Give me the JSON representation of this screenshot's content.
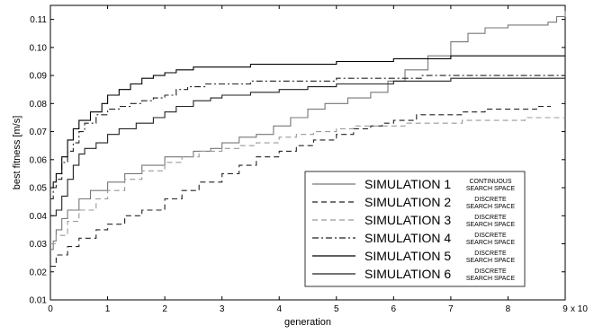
{
  "chart_data": {
    "type": "line",
    "xlabel": "generation",
    "ylabel": "best fitness [m/s]",
    "x_multiplier_label": "x 10",
    "xlim": [
      0,
      9
    ],
    "ylim": [
      0.01,
      0.115
    ],
    "xticks": [
      "0",
      "1",
      "2",
      "3",
      "4",
      "5",
      "6",
      "7",
      "8",
      "9"
    ],
    "yticks": [
      "0.01",
      "0.02",
      "0.03",
      "0.04",
      "0.05",
      "0.06",
      "0.07",
      "0.08",
      "0.09",
      "0.10",
      "0.11"
    ],
    "grid": false,
    "legend_position": "lower-right",
    "series": [
      {
        "name": "SIMULATION 1",
        "subtitle_top": "CONTINUOUS",
        "subtitle_bottom": "SEARCH SPACE",
        "style": "solid",
        "color": "#777777",
        "points": [
          [
            0,
            0.028
          ],
          [
            0.05,
            0.031
          ],
          [
            0.1,
            0.035
          ],
          [
            0.2,
            0.039
          ],
          [
            0.3,
            0.042
          ],
          [
            0.5,
            0.046
          ],
          [
            0.7,
            0.049
          ],
          [
            1.0,
            0.052
          ],
          [
            1.3,
            0.055
          ],
          [
            1.6,
            0.058
          ],
          [
            2.0,
            0.061
          ],
          [
            2.5,
            0.063
          ],
          [
            2.8,
            0.064
          ],
          [
            3.0,
            0.066
          ],
          [
            3.3,
            0.068
          ],
          [
            3.6,
            0.069
          ],
          [
            3.9,
            0.072
          ],
          [
            4.2,
            0.075
          ],
          [
            4.5,
            0.078
          ],
          [
            4.8,
            0.08
          ],
          [
            5.2,
            0.082
          ],
          [
            5.6,
            0.084
          ],
          [
            5.9,
            0.088
          ],
          [
            6.2,
            0.092
          ],
          [
            6.6,
            0.097
          ],
          [
            7.0,
            0.102
          ],
          [
            7.3,
            0.105
          ],
          [
            7.6,
            0.107
          ],
          [
            8.0,
            0.108
          ],
          [
            8.4,
            0.108
          ],
          [
            8.7,
            0.109
          ],
          [
            8.85,
            0.111
          ],
          [
            9.0,
            0.113
          ]
        ]
      },
      {
        "name": "SIMULATION 2",
        "subtitle_top": "DISCRETE",
        "subtitle_bottom": "SEARCH SPACE",
        "style": "dashed",
        "color": "#222222",
        "points": [
          [
            0,
            0.022
          ],
          [
            0.1,
            0.026
          ],
          [
            0.3,
            0.029
          ],
          [
            0.5,
            0.032
          ],
          [
            0.8,
            0.035
          ],
          [
            1.0,
            0.037
          ],
          [
            1.3,
            0.04
          ],
          [
            1.6,
            0.042
          ],
          [
            2.0,
            0.046
          ],
          [
            2.3,
            0.049
          ],
          [
            2.6,
            0.052
          ],
          [
            3.0,
            0.055
          ],
          [
            3.3,
            0.058
          ],
          [
            3.6,
            0.061
          ],
          [
            4.0,
            0.063
          ],
          [
            4.3,
            0.065
          ],
          [
            4.6,
            0.067
          ],
          [
            5.0,
            0.069
          ],
          [
            5.3,
            0.071
          ],
          [
            5.6,
            0.072
          ],
          [
            5.8,
            0.073
          ],
          [
            6.0,
            0.074
          ],
          [
            6.4,
            0.076
          ],
          [
            6.8,
            0.076
          ],
          [
            7.2,
            0.077
          ],
          [
            7.6,
            0.078
          ],
          [
            8.0,
            0.078
          ],
          [
            8.5,
            0.079
          ],
          [
            8.75,
            0.079
          ]
        ]
      },
      {
        "name": "SIMULATION 3",
        "subtitle_top": "DISCRETE",
        "subtitle_bottom": "SEARCH SPACE",
        "style": "dashed",
        "color": "#999999",
        "points": [
          [
            0,
            0.03
          ],
          [
            0.1,
            0.033
          ],
          [
            0.3,
            0.038
          ],
          [
            0.5,
            0.042
          ],
          [
            0.8,
            0.046
          ],
          [
            1.0,
            0.049
          ],
          [
            1.3,
            0.053
          ],
          [
            1.6,
            0.056
          ],
          [
            2.0,
            0.059
          ],
          [
            2.3,
            0.061
          ],
          [
            2.6,
            0.063
          ],
          [
            3.0,
            0.064
          ],
          [
            3.3,
            0.065
          ],
          [
            3.6,
            0.066
          ],
          [
            4.0,
            0.068
          ],
          [
            4.3,
            0.069
          ],
          [
            4.6,
            0.07
          ],
          [
            5.0,
            0.071
          ],
          [
            5.3,
            0.072
          ],
          [
            5.8,
            0.072
          ],
          [
            6.2,
            0.073
          ],
          [
            6.8,
            0.073
          ],
          [
            7.2,
            0.074
          ],
          [
            7.8,
            0.074
          ],
          [
            8.3,
            0.075
          ],
          [
            9.0,
            0.075
          ]
        ]
      },
      {
        "name": "SIMULATION 4",
        "subtitle_top": "DISCRETE",
        "subtitle_bottom": "SEARCH SPACE",
        "style": "dashdot",
        "color": "#222222",
        "points": [
          [
            0,
            0.046
          ],
          [
            0.05,
            0.05
          ],
          [
            0.1,
            0.053
          ],
          [
            0.2,
            0.059
          ],
          [
            0.3,
            0.063
          ],
          [
            0.4,
            0.066
          ],
          [
            0.5,
            0.07
          ],
          [
            0.6,
            0.073
          ],
          [
            0.8,
            0.076
          ],
          [
            1.0,
            0.078
          ],
          [
            1.2,
            0.079
          ],
          [
            1.4,
            0.08
          ],
          [
            1.6,
            0.081
          ],
          [
            1.8,
            0.082
          ],
          [
            2.0,
            0.083
          ],
          [
            2.2,
            0.085
          ],
          [
            2.4,
            0.086
          ],
          [
            2.7,
            0.087
          ],
          [
            3.0,
            0.087
          ],
          [
            3.5,
            0.088
          ],
          [
            4.0,
            0.088
          ],
          [
            4.5,
            0.088
          ],
          [
            5.0,
            0.089
          ],
          [
            5.5,
            0.089
          ],
          [
            6.0,
            0.089
          ],
          [
            6.5,
            0.09
          ],
          [
            7.0,
            0.09
          ],
          [
            8.0,
            0.09
          ],
          [
            9.0,
            0.09
          ]
        ]
      },
      {
        "name": "SIMULATION 5",
        "subtitle_top": "DISCRETE",
        "subtitle_bottom": "SEARCH SPACE",
        "style": "solid",
        "color": "#000000",
        "points": [
          [
            0,
            0.05
          ],
          [
            0.05,
            0.052
          ],
          [
            0.1,
            0.055
          ],
          [
            0.2,
            0.061
          ],
          [
            0.3,
            0.067
          ],
          [
            0.4,
            0.071
          ],
          [
            0.5,
            0.074
          ],
          [
            0.7,
            0.077
          ],
          [
            0.9,
            0.08
          ],
          [
            1.0,
            0.083
          ],
          [
            1.2,
            0.085
          ],
          [
            1.4,
            0.087
          ],
          [
            1.6,
            0.089
          ],
          [
            1.8,
            0.09
          ],
          [
            2.0,
            0.091
          ],
          [
            2.2,
            0.092
          ],
          [
            2.5,
            0.093
          ],
          [
            3.0,
            0.093
          ],
          [
            3.5,
            0.094
          ],
          [
            4.0,
            0.094
          ],
          [
            4.5,
            0.094
          ],
          [
            5.0,
            0.095
          ],
          [
            5.5,
            0.095
          ],
          [
            6.0,
            0.096
          ],
          [
            6.5,
            0.096
          ],
          [
            7.0,
            0.097
          ],
          [
            8.0,
            0.097
          ],
          [
            9.0,
            0.097
          ]
        ]
      },
      {
        "name": "SIMULATION 6",
        "subtitle_top": "DISCRETE",
        "subtitle_bottom": "SEARCH SPACE",
        "style": "solid",
        "color": "#222222",
        "points": [
          [
            0,
            0.04
          ],
          [
            0.1,
            0.042
          ],
          [
            0.2,
            0.047
          ],
          [
            0.3,
            0.053
          ],
          [
            0.4,
            0.058
          ],
          [
            0.5,
            0.062
          ],
          [
            0.6,
            0.064
          ],
          [
            0.8,
            0.066
          ],
          [
            1.0,
            0.069
          ],
          [
            1.2,
            0.071
          ],
          [
            1.5,
            0.073
          ],
          [
            1.8,
            0.075
          ],
          [
            2.0,
            0.077
          ],
          [
            2.2,
            0.079
          ],
          [
            2.5,
            0.081
          ],
          [
            2.8,
            0.082
          ],
          [
            3.0,
            0.083
          ],
          [
            3.5,
            0.084
          ],
          [
            4.0,
            0.085
          ],
          [
            4.5,
            0.086
          ],
          [
            5.0,
            0.087
          ],
          [
            5.5,
            0.087
          ],
          [
            6.0,
            0.088
          ],
          [
            6.5,
            0.088
          ],
          [
            7.0,
            0.089
          ],
          [
            8.0,
            0.089
          ],
          [
            9.0,
            0.089
          ]
        ]
      }
    ]
  }
}
